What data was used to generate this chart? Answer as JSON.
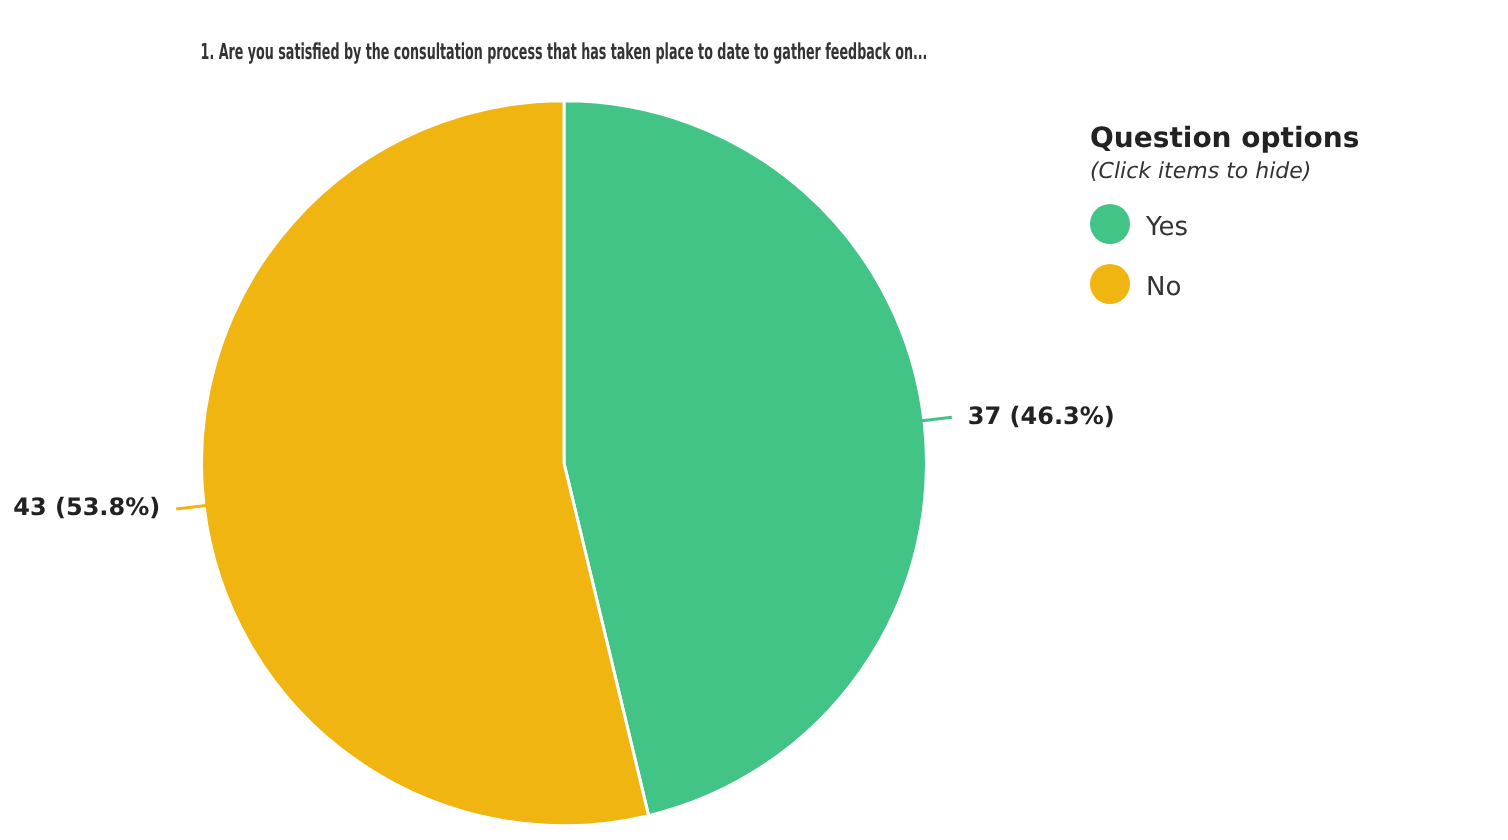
{
  "chart_data": {
    "type": "pie",
    "title": "1. Are you satisfied by the consultation process that has taken place to date to gather feedback on...",
    "categories": [
      "Yes",
      "No"
    ],
    "values": [
      37,
      43
    ],
    "colors": [
      "#41c485",
      "#f0b510"
    ],
    "value_labels": [
      "37 (46.3%)",
      "43 (53.8%)"
    ],
    "legend": "top right",
    "legend_title": "Question options",
    "annotations": [
      "(Click items to hide)"
    ]
  }
}
